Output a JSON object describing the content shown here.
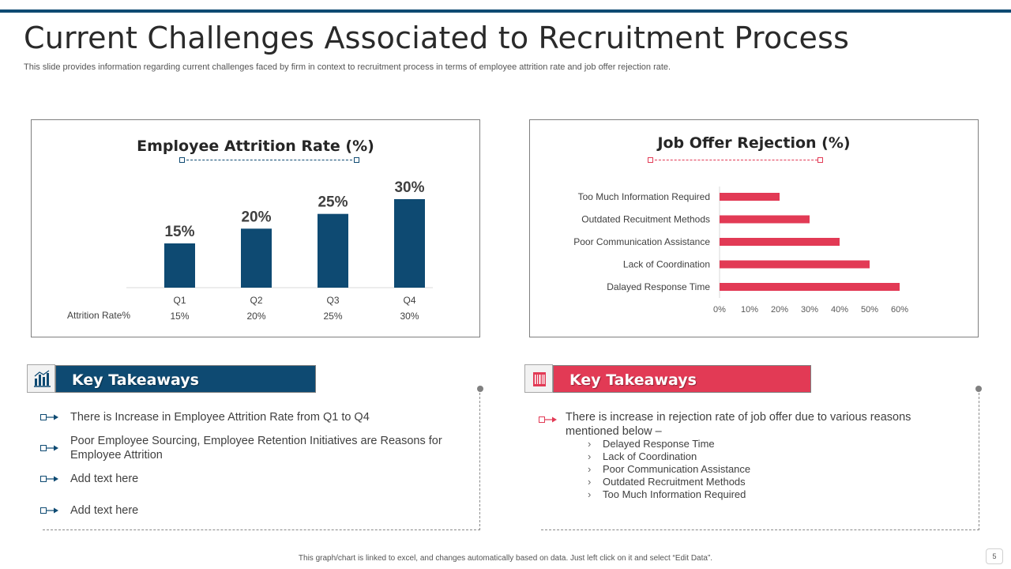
{
  "slide": {
    "title": "Current Challenges Associated to Recruitment Process",
    "subtitle": "This slide provides information regarding current challenges faced by firm in context to recruitment process in terms of employee attrition rate and job offer rejection rate.",
    "footer": "This graph/chart is linked to excel, and changes automatically based on data. Just left click on it and select “Edit Data”.",
    "page_number": "5"
  },
  "colors": {
    "navy": "#0e4a72",
    "red": "#e23a55",
    "axis": "#d9d9d9"
  },
  "chart_data": [
    {
      "type": "bar",
      "title": "Employee Attrition Rate (%)",
      "categories": [
        "Q1",
        "Q2",
        "Q3",
        "Q4"
      ],
      "values": [
        15,
        20,
        25,
        30
      ],
      "data_labels": [
        "15%",
        "20%",
        "25%",
        "30%"
      ],
      "table_row_label": "Attrition Rate%",
      "ylim": [
        0,
        30
      ],
      "grid": false,
      "legend": "none"
    },
    {
      "type": "bar",
      "orientation": "horizontal",
      "title": "Job Offer Rejection (%)",
      "categories": [
        "Too Much Information Required",
        "Outdated Recuitment Methods",
        "Poor Communication Assistance",
        "Lack of Coordination",
        "Dalayed Response Time"
      ],
      "values": [
        20,
        30,
        40,
        50,
        60
      ],
      "x_ticks": [
        "0%",
        "10%",
        "20%",
        "30%",
        "40%",
        "50%",
        "60%"
      ],
      "xlim": [
        0,
        60
      ],
      "grid": false,
      "legend": "none"
    }
  ],
  "takeaways_left": {
    "title": "Key Takeaways",
    "icon": "bar-chart-icon",
    "items": [
      "There is Increase in Employee Attrition Rate from Q1 to Q4",
      "Poor Employee Sourcing, Employee Retention Initiatives  are Reasons for Employee Attrition",
      "Add text here",
      "Add text here"
    ]
  },
  "takeaways_right": {
    "title": "Key Takeaways",
    "icon": "barcode-icon",
    "intro": "There is increase in rejection rate of job offer due to various reasons mentioned below –",
    "chevron": "›",
    "reasons": [
      "Delayed Response Time",
      "Lack of Coordination",
      "Poor Communication Assistance",
      "Outdated Recruitment Methods",
      "Too Much Information  Required"
    ]
  }
}
